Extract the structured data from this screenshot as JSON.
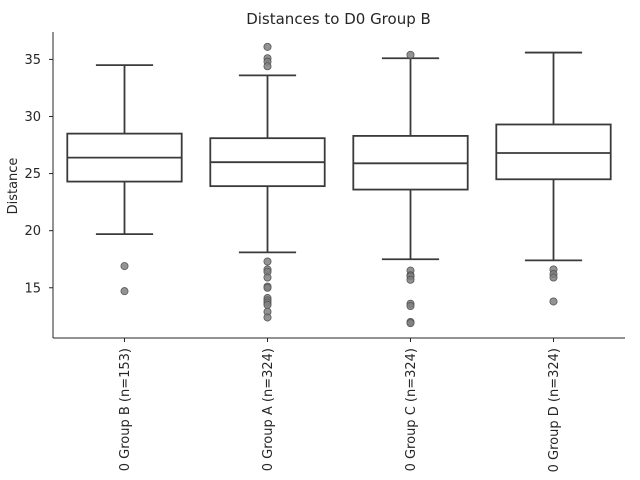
{
  "chart_data": {
    "type": "box",
    "title": "Distances to D0 Group B",
    "ylabel": "Distance",
    "xlabel": "",
    "ylim": [
      10.6,
      37.4
    ],
    "yticks": [
      15,
      20,
      25,
      30,
      35
    ],
    "categories": [
      "0 Group B (n=153)",
      "0 Group A (n=324)",
      "0 Group C (n=324)",
      "0 Group D (n=324)"
    ],
    "boxes": [
      {
        "whisker_low": 19.7,
        "q1": 24.3,
        "median": 26.4,
        "q3": 28.5,
        "whisker_high": 34.5,
        "outliers": [
          16.9,
          14.7
        ]
      },
      {
        "whisker_low": 18.1,
        "q1": 23.9,
        "median": 26.0,
        "q3": 28.1,
        "whisker_high": 33.6,
        "outliers": [
          36.1,
          35.1,
          34.8,
          34.4,
          17.3,
          16.6,
          16.4,
          15.9,
          15.1,
          15.0,
          14.1,
          13.9,
          13.7,
          13.5,
          12.9,
          12.4
        ]
      },
      {
        "whisker_low": 17.5,
        "q1": 23.6,
        "median": 25.9,
        "q3": 28.3,
        "whisker_high": 35.1,
        "outliers": [
          35.4,
          16.5,
          16.1,
          16.0,
          15.7,
          13.6,
          13.4,
          12.0,
          11.9
        ]
      },
      {
        "whisker_low": 17.4,
        "q1": 24.5,
        "median": 26.8,
        "q3": 29.3,
        "whisker_high": 35.6,
        "outliers": [
          16.6,
          16.2,
          15.9,
          13.8
        ]
      }
    ],
    "colors": {
      "box_edge": "#3a3a3a",
      "box_fill": "#ffffff",
      "outlier": "#808080",
      "axis": "#262626"
    },
    "grid": false,
    "legend": "none"
  }
}
